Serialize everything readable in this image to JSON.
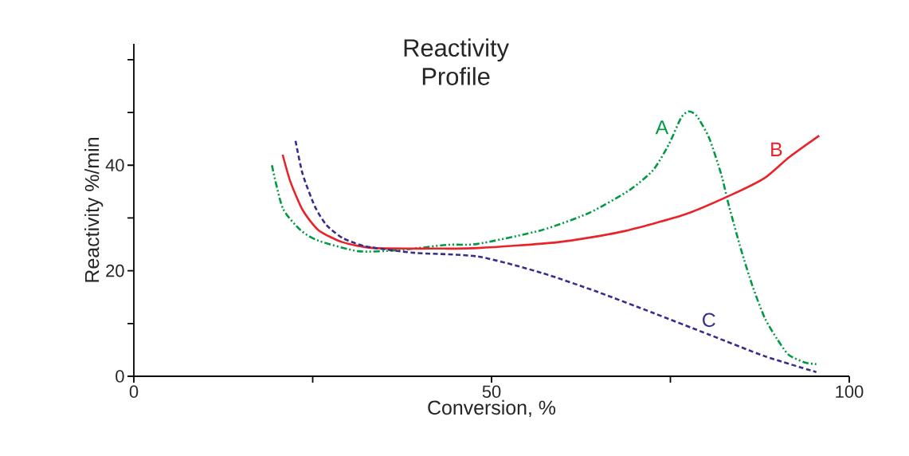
{
  "chart_data": {
    "type": "line",
    "title": "Reactivity\nProfile",
    "xlabel": "Conversion, %",
    "ylabel": "Reactivity %/min",
    "xlim": [
      0,
      100
    ],
    "ylim": [
      0,
      63
    ],
    "xticks": [
      0,
      {
        "value": 25,
        "label": null
      },
      50,
      {
        "value": 75,
        "label": null
      },
      100
    ],
    "yticks": [
      0,
      {
        "value": 10,
        "label": null
      },
      20,
      {
        "value": 30,
        "label": null
      },
      40,
      {
        "value": 50,
        "label": null
      },
      {
        "value": 60,
        "label": null
      }
    ],
    "grid": false,
    "series": [
      {
        "name": "A",
        "color": "#009a44",
        "line_style": "dashdotdotted",
        "x": [
          19.3,
          20.8,
          23.3,
          25.8,
          31.4,
          37,
          43.7,
          48.1,
          57,
          63.7,
          69.3,
          72.6,
          74.8,
          76.5,
          77.6,
          78.7,
          80.4,
          82.1,
          83.2,
          84.9,
          86.5,
          88.2,
          89.9,
          91.5,
          93.8,
          95.4
        ],
        "values": [
          40,
          31.9,
          27.7,
          25.7,
          23.7,
          23.9,
          24.9,
          25.1,
          27.7,
          31,
          35.3,
          39.1,
          44,
          49,
          50.2,
          49.3,
          45.2,
          38.3,
          32.2,
          23.9,
          17,
          11,
          7.1,
          4.1,
          2.6,
          2.3
        ]
      },
      {
        "name": "B",
        "color": "#e8242a",
        "line_style": "solid",
        "x": [
          20.8,
          21.9,
          23.6,
          25.8,
          29.2,
          33.6,
          42.5,
          48.1,
          59.2,
          68.2,
          77.1,
          83.7,
          88.2,
          91.5,
          95.8
        ],
        "values": [
          42,
          36.8,
          31.5,
          27.7,
          25.4,
          24.3,
          24.2,
          24.3,
          25.4,
          27.4,
          30.7,
          34.5,
          37.6,
          41.4,
          45.6
        ]
      },
      {
        "name": "C",
        "color": "#352f8c",
        "line_style": "dashed",
        "x": [
          22.6,
          23.6,
          25.3,
          26.9,
          29.2,
          32.5,
          39.2,
          48.1,
          57,
          64.8,
          72.6,
          80.4,
          88.2,
          95.4
        ],
        "values": [
          44.6,
          38.3,
          32.2,
          28.7,
          26.2,
          24.6,
          23.4,
          22.7,
          19.6,
          16,
          12,
          7.9,
          3.8,
          0.8
        ]
      }
    ]
  }
}
